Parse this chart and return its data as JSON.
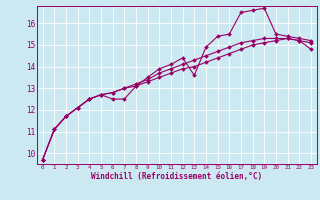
{
  "xlabel": "Windchill (Refroidissement éolien,°C)",
  "ylabel": "",
  "background_color": "#cce8f0",
  "grid_color": "#ffffff",
  "line_color": "#990066",
  "xlim": [
    -0.5,
    23.5
  ],
  "ylim": [
    9.5,
    16.8
  ],
  "xticks": [
    0,
    1,
    2,
    3,
    4,
    5,
    6,
    7,
    8,
    9,
    10,
    11,
    12,
    13,
    14,
    15,
    16,
    17,
    18,
    19,
    20,
    21,
    22,
    23
  ],
  "yticks": [
    10,
    11,
    12,
    13,
    14,
    15,
    16
  ],
  "series": [
    [
      9.7,
      11.1,
      11.7,
      12.1,
      12.5,
      12.7,
      12.5,
      12.5,
      13.1,
      13.5,
      13.9,
      14.1,
      14.4,
      13.6,
      14.9,
      15.4,
      15.5,
      16.5,
      16.6,
      16.7,
      15.5,
      15.4,
      15.3,
      15.2
    ],
    [
      9.7,
      11.1,
      11.7,
      12.1,
      12.5,
      12.7,
      12.8,
      13.0,
      13.2,
      13.4,
      13.7,
      13.9,
      14.1,
      14.3,
      14.5,
      14.7,
      14.9,
      15.1,
      15.2,
      15.3,
      15.3,
      15.3,
      15.2,
      15.1
    ],
    [
      9.7,
      11.1,
      11.7,
      12.1,
      12.5,
      12.7,
      12.8,
      13.0,
      13.1,
      13.3,
      13.5,
      13.7,
      13.9,
      14.0,
      14.2,
      14.4,
      14.6,
      14.8,
      15.0,
      15.1,
      15.2,
      15.3,
      15.2,
      14.8
    ]
  ]
}
